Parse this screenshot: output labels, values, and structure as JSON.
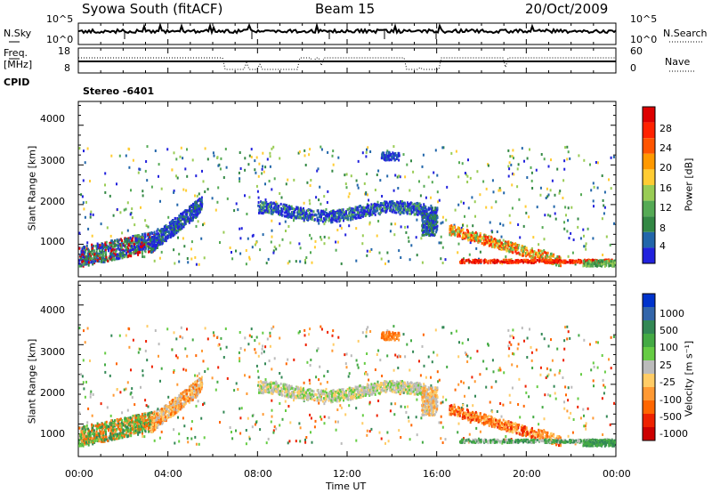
{
  "header": {
    "station": "Syowa South (fitACF)",
    "beam": "Beam 15",
    "date": "20/Oct/2009"
  },
  "left_labels": {
    "nsky": "N.Sky",
    "freq": "Freq.",
    "freq_unit": "[MHz]",
    "cpid": "CPID"
  },
  "right_labels": {
    "nsearch": "N.Search",
    "nave": "Nave"
  },
  "cpid_value": "Stereo -6401",
  "colors": {
    "power": [
      "#2222dd",
      "#2266aa",
      "#338844",
      "#55aa55",
      "#99cc55",
      "#ffcc33",
      "#ff9900",
      "#ff5500",
      "#ff2200",
      "#dd0000"
    ],
    "velocity": [
      "#0033cc",
      "#3366aa",
      "#338855",
      "#44aa44",
      "#66cc44",
      "#bbbbbb",
      "#ffcc66",
      "#ff9933",
      "#ff6600",
      "#ee2200",
      "#cc0000"
    ]
  },
  "chart_data": [
    {
      "type": "line",
      "name": "noise-panel",
      "y_left_ticks": [
        "10^5",
        "10^0"
      ],
      "y_right_ticks": [
        "10^5",
        "10^0"
      ]
    },
    {
      "type": "line",
      "name": "freq-nave-panel",
      "y_left_ticks": [
        "18",
        "8"
      ],
      "y_right_ticks": [
        "60",
        "0"
      ],
      "ylim_left": [
        8,
        18
      ],
      "ylim_right": [
        0,
        60
      ]
    },
    {
      "type": "heatmap",
      "name": "power-panel",
      "ylabel": "Slant Range [km]",
      "yticks": [
        1000,
        2000,
        3000,
        4000
      ],
      "ylim": [
        180,
        4600
      ],
      "xlim": [
        0,
        24
      ],
      "colorbar": {
        "label": "Power [dB]",
        "ticks": [
          "28",
          "24",
          "20",
          "16",
          "12",
          "8",
          "4"
        ],
        "range": [
          0,
          30
        ]
      }
    },
    {
      "type": "heatmap",
      "name": "velocity-panel",
      "ylabel": "Slant Range [km]",
      "yticks": [
        1000,
        2000,
        3000,
        4000
      ],
      "ylim": [
        180,
        4600
      ],
      "xlim": [
        0,
        24
      ],
      "colorbar": {
        "label": "Velocity [m s⁻¹]",
        "ticks": [
          "1000",
          "500",
          "100",
          "25",
          "-25",
          "-100",
          "-500",
          "-1000"
        ]
      }
    }
  ],
  "xaxis": {
    "ticks": [
      "00:00",
      "04:00",
      "08:00",
      "12:00",
      "16:00",
      "20:00",
      "00:00"
    ],
    "label": "Time UT"
  }
}
